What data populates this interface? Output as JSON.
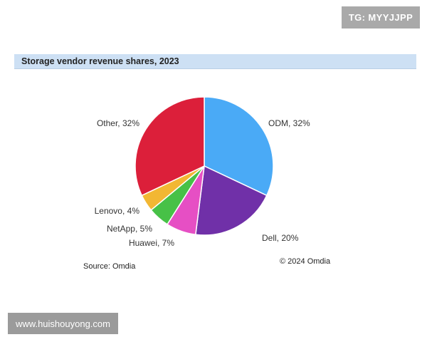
{
  "watermarks": {
    "top": "TG: MYYJJPP",
    "bottom": "www.huishouyong.com"
  },
  "footer": {
    "source": "Source: Omdia",
    "copyright": "© 2024 Omdia"
  },
  "colors": {
    "title_bar": "#cde0f4"
  },
  "chart_data": {
    "type": "pie",
    "title": "Storage vendor revenue shares, 2023",
    "slices": [
      {
        "name": "ODM",
        "value": 32,
        "label": "ODM, 32%",
        "color": "#4aaaf6"
      },
      {
        "name": "Dell",
        "value": 20,
        "label": "Dell, 20%",
        "color": "#7030a8"
      },
      {
        "name": "Huawei",
        "value": 7,
        "label": "Huawei, 7%",
        "color": "#e64fc4"
      },
      {
        "name": "NetApp",
        "value": 5,
        "label": "NetApp, 5%",
        "color": "#47c147"
      },
      {
        "name": "Lenovo",
        "value": 4,
        "label": "Lenovo, 4%",
        "color": "#f2b733"
      },
      {
        "name": "Other",
        "value": 32,
        "label": "Other, 32%",
        "color": "#dc1f3a"
      }
    ],
    "start_angle_deg": 0,
    "direction": "clockwise",
    "legend": "none"
  }
}
